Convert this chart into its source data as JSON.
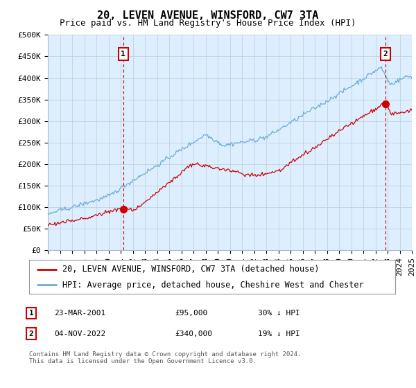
{
  "title": "20, LEVEN AVENUE, WINSFORD, CW7 3TA",
  "subtitle": "Price paid vs. HM Land Registry's House Price Index (HPI)",
  "ylabel_ticks": [
    "£0",
    "£50K",
    "£100K",
    "£150K",
    "£200K",
    "£250K",
    "£300K",
    "£350K",
    "£400K",
    "£450K",
    "£500K"
  ],
  "ytick_values": [
    0,
    50000,
    100000,
    150000,
    200000,
    250000,
    300000,
    350000,
    400000,
    450000,
    500000
  ],
  "ylim": [
    0,
    500000
  ],
  "xlim_start": 1995,
  "xlim_end": 2025,
  "hpi_color": "#6baed6",
  "price_color": "#cc0000",
  "dashed_color": "#cc0000",
  "chart_bg": "#ddeeff",
  "marker1_year": 2001.22,
  "marker1_price": 95000,
  "marker2_year": 2022.84,
  "marker2_price": 340000,
  "legend_label1": "20, LEVEN AVENUE, WINSFORD, CW7 3TA (detached house)",
  "legend_label2": "HPI: Average price, detached house, Cheshire West and Chester",
  "table_row1_num": "1",
  "table_row1_date": "23-MAR-2001",
  "table_row1_price": "£95,000",
  "table_row1_hpi": "30% ↓ HPI",
  "table_row2_num": "2",
  "table_row2_date": "04-NOV-2022",
  "table_row2_price": "£340,000",
  "table_row2_hpi": "19% ↓ HPI",
  "footnote": "Contains HM Land Registry data © Crown copyright and database right 2024.\nThis data is licensed under the Open Government Licence v3.0.",
  "background_color": "#ffffff",
  "grid_color": "#bbccdd",
  "title_fontsize": 11,
  "subtitle_fontsize": 9,
  "axis_fontsize": 8,
  "legend_fontsize": 8.5
}
